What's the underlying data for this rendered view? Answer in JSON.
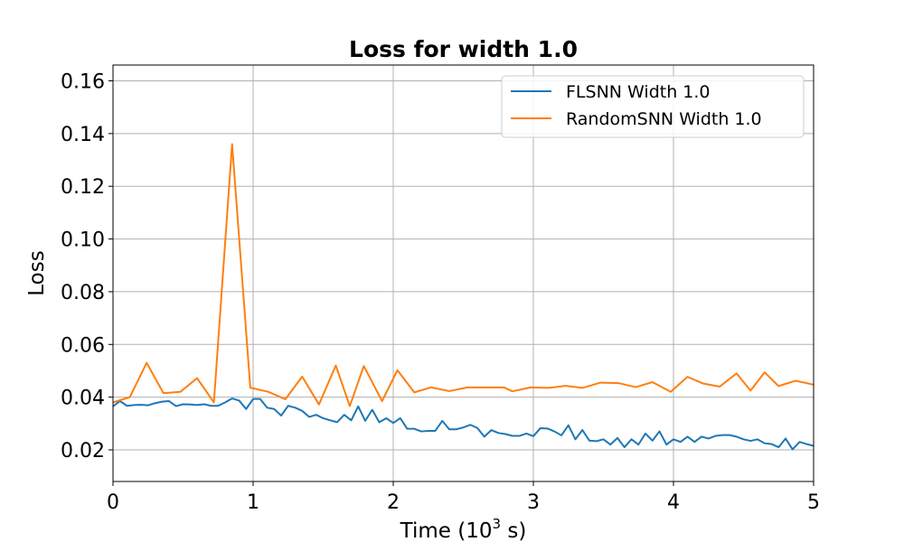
{
  "chart_data": {
    "type": "line",
    "title": "Loss for width 1.0",
    "xlabel": "Time (10^3 s)",
    "xlabel_parts": [
      "Time (10",
      "3",
      " s)"
    ],
    "ylabel": "Loss",
    "xlim": [
      0,
      5
    ],
    "ylim": [
      0.008,
      0.166
    ],
    "xticks": [
      0,
      1,
      2,
      3,
      4,
      5
    ],
    "xtick_labels": [
      "0",
      "1",
      "2",
      "3",
      "4",
      "5"
    ],
    "yticks": [
      0.02,
      0.04,
      0.06,
      0.08,
      0.1,
      0.12,
      0.14,
      0.16
    ],
    "ytick_labels": [
      "0.02",
      "0.04",
      "0.06",
      "0.08",
      "0.10",
      "0.12",
      "0.14",
      "0.16"
    ],
    "grid": true,
    "legend_position": "top-right",
    "series": [
      {
        "name": "FLSNN Width 1.0",
        "color": "#1f77b4",
        "x": [
          0.0,
          0.05,
          0.1,
          0.15,
          0.2,
          0.25,
          0.3,
          0.35,
          0.4,
          0.45,
          0.5,
          0.55,
          0.6,
          0.65,
          0.7,
          0.75,
          0.8,
          0.85,
          0.9,
          0.95,
          1.0,
          1.05,
          1.1,
          1.15,
          1.2,
          1.25,
          1.3,
          1.35,
          1.4,
          1.45,
          1.5,
          1.55,
          1.6,
          1.65,
          1.7,
          1.75,
          1.8,
          1.85,
          1.9,
          1.95,
          2.0,
          2.05,
          2.1,
          2.15,
          2.2,
          2.25,
          2.3,
          2.35,
          2.4,
          2.45,
          2.5,
          2.55,
          2.6,
          2.65,
          2.7,
          2.75,
          2.8,
          2.85,
          2.9,
          2.95,
          3.0,
          3.05,
          3.1,
          3.15,
          3.2,
          3.25,
          3.3,
          3.35,
          3.4,
          3.45,
          3.5,
          3.55,
          3.6,
          3.65,
          3.7,
          3.75,
          3.8,
          3.85,
          3.9,
          3.95,
          4.0,
          4.05,
          4.1,
          4.15,
          4.2,
          4.25,
          4.3,
          4.35,
          4.4,
          4.45,
          4.5,
          4.55,
          4.6,
          4.65,
          4.7,
          4.75,
          4.8,
          4.85,
          4.9,
          4.95,
          5.0
        ],
        "y": [
          0.0365,
          0.0385,
          0.0367,
          0.037,
          0.0371,
          0.0369,
          0.0377,
          0.0383,
          0.0385,
          0.0366,
          0.0373,
          0.0372,
          0.037,
          0.0373,
          0.0367,
          0.0367,
          0.038,
          0.0395,
          0.0387,
          0.0355,
          0.0393,
          0.0393,
          0.036,
          0.0355,
          0.033,
          0.0367,
          0.036,
          0.0348,
          0.0325,
          0.0333,
          0.032,
          0.0312,
          0.0305,
          0.0333,
          0.0312,
          0.0365,
          0.031,
          0.0352,
          0.0305,
          0.032,
          0.0302,
          0.032,
          0.028,
          0.028,
          0.027,
          0.0272,
          0.0272,
          0.031,
          0.0278,
          0.0278,
          0.0285,
          0.0295,
          0.0283,
          0.025,
          0.0275,
          0.0264,
          0.026,
          0.0253,
          0.0253,
          0.0262,
          0.0252,
          0.0282,
          0.0281,
          0.027,
          0.0255,
          0.0293,
          0.024,
          0.0275,
          0.0235,
          0.0233,
          0.024,
          0.022,
          0.0245,
          0.021,
          0.024,
          0.022,
          0.0262,
          0.0235,
          0.027,
          0.022,
          0.024,
          0.023,
          0.025,
          0.023,
          0.025,
          0.0243,
          0.0253,
          0.0256,
          0.0256,
          0.025,
          0.024,
          0.0234,
          0.024,
          0.0225,
          0.0222,
          0.021,
          0.0243,
          0.0202,
          0.023,
          0.0222,
          0.0215
        ]
      },
      {
        "name": "RandomSNN Width 1.0",
        "color": "#ff7f0e",
        "x": [
          0.0,
          0.12,
          0.24,
          0.36,
          0.48,
          0.6,
          0.72,
          0.85,
          0.98,
          1.11,
          1.23,
          1.35,
          1.47,
          1.59,
          1.69,
          1.79,
          1.92,
          2.03,
          2.15,
          2.27,
          2.4,
          2.53,
          2.66,
          2.79,
          2.85,
          2.98,
          3.11,
          3.23,
          3.35,
          3.48,
          3.61,
          3.73,
          3.85,
          3.98,
          4.1,
          4.21,
          4.33,
          4.45,
          4.55,
          4.65,
          4.75,
          4.87,
          4.96,
          5.0
        ],
        "y": [
          0.038,
          0.04,
          0.053,
          0.0415,
          0.042,
          0.0472,
          0.038,
          0.136,
          0.0436,
          0.042,
          0.0392,
          0.0478,
          0.0372,
          0.052,
          0.0366,
          0.0518,
          0.0385,
          0.0502,
          0.0418,
          0.0437,
          0.0423,
          0.0437,
          0.0437,
          0.0437,
          0.0422,
          0.0437,
          0.0435,
          0.0443,
          0.0435,
          0.0455,
          0.0453,
          0.0438,
          0.0457,
          0.042,
          0.0477,
          0.0452,
          0.044,
          0.049,
          0.0425,
          0.0494,
          0.0442,
          0.0462,
          0.0452,
          0.0447
        ]
      }
    ]
  }
}
